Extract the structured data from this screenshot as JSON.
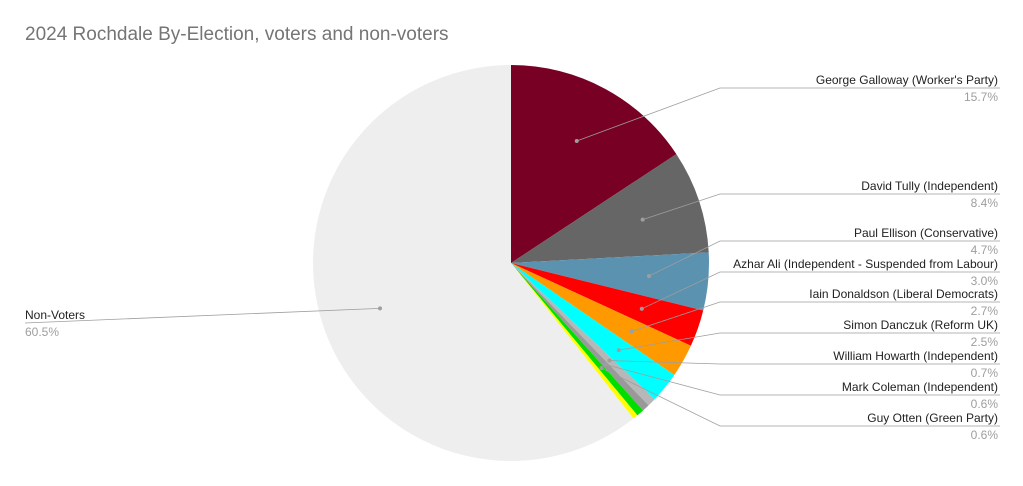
{
  "chart_data": {
    "type": "pie",
    "title": "2024 Rochdale By-Election, voters and non-voters",
    "slices": [
      {
        "label": "George Galloway (Worker's Party)",
        "value": 15.7,
        "display": "15.7%",
        "color": "#780025"
      },
      {
        "label": "David Tully (Independent)",
        "value": 8.4,
        "display": "8.4%",
        "color": "#666666"
      },
      {
        "label": "Paul Ellison (Conservative)",
        "value": 4.7,
        "display": "4.7%",
        "color": "#5b92b0"
      },
      {
        "label": "Azhar Ali (Independent - Suspended from Labour)",
        "value": 3.0,
        "display": "3.0%",
        "color": "#ff0000"
      },
      {
        "label": "Iain Donaldson (Liberal Democrats)",
        "value": 2.7,
        "display": "2.7%",
        "color": "#ff9900"
      },
      {
        "label": "Simon Danczuk (Reform UK)",
        "value": 2.5,
        "display": "2.5%",
        "color": "#00ffff"
      },
      {
        "label": "William Howarth (Independent)",
        "value": 0.7,
        "display": "0.7%",
        "color": "#b7b7b7"
      },
      {
        "label": "Mark Coleman (Independent)",
        "value": 0.6,
        "display": "0.6%",
        "color": "#999999"
      },
      {
        "label": "Guy Otten (Green Party)",
        "value": 0.6,
        "display": "0.6%",
        "color": "#00dd00"
      },
      {
        "label": "",
        "value": 0.4,
        "display": "",
        "color": "#ffff00"
      },
      {
        "label": "Non-Voters",
        "value": 60.5,
        "display": "60.5%",
        "color": "#eeeeee"
      }
    ],
    "legend": "none"
  }
}
